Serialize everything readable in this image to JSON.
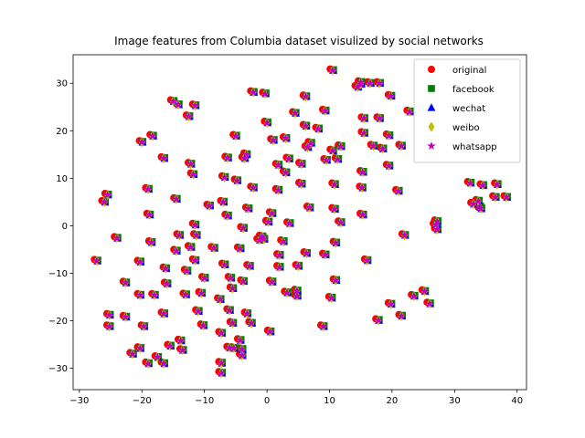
{
  "chart_data": {
    "type": "scatter",
    "title": "Image features from Columbia dataset visulized by social networks",
    "xlabel": "",
    "ylabel": "",
    "xlim": [
      -31,
      41.5
    ],
    "ylim": [
      -34.5,
      36
    ],
    "xticks": [
      -30,
      -20,
      -10,
      0,
      10,
      20,
      30,
      40
    ],
    "yticks": [
      -30,
      -20,
      -10,
      0,
      10,
      20,
      30
    ],
    "grid": false,
    "legend_position": "top-right",
    "series": [
      {
        "name": "original",
        "marker": "circle",
        "color": "#ff0000"
      },
      {
        "name": "facebook",
        "marker": "square",
        "color": "#008000"
      },
      {
        "name": "wechat",
        "marker": "triangle",
        "color": "#0000ff"
      },
      {
        "name": "weibo",
        "marker": "diamond",
        "color": "#bfbf00"
      },
      {
        "name": "whatsapp",
        "marker": "star",
        "color": "#bf00bf"
      }
    ],
    "points": [
      [
        -27.2,
        -7.4
      ],
      [
        -26,
        5
      ],
      [
        -25.5,
        6.5
      ],
      [
        -25.2,
        -18.8
      ],
      [
        -25.2,
        -21.2
      ],
      [
        -24,
        -2.6
      ],
      [
        -22.6,
        -12
      ],
      [
        -22.6,
        -19.2
      ],
      [
        -21.5,
        -27
      ],
      [
        -20.3,
        -25.8
      ],
      [
        -20.3,
        -14.6
      ],
      [
        -20.3,
        -7.6
      ],
      [
        -20,
        17.6
      ],
      [
        -19.7,
        -21.2
      ],
      [
        -19,
        7.7
      ],
      [
        -19,
        -29
      ],
      [
        -18.8,
        2.3
      ],
      [
        -18.5,
        -3.5
      ],
      [
        -18.3,
        18.9
      ],
      [
        -18,
        -14.6
      ],
      [
        -17.5,
        -27.7
      ],
      [
        -16.5,
        14.2
      ],
      [
        -16.5,
        -18.5
      ],
      [
        -16.5,
        -29
      ],
      [
        -16.2,
        -9
      ],
      [
        -16,
        -12.2
      ],
      [
        -15.5,
        -25.3
      ],
      [
        -15,
        26.2
      ],
      [
        -14.5,
        5.6
      ],
      [
        -14.5,
        -5.3
      ],
      [
        -14.2,
        25.5
      ],
      [
        -14,
        -2
      ],
      [
        -13.8,
        -24.2
      ],
      [
        -13.5,
        -26.2
      ],
      [
        -13,
        -14.5
      ],
      [
        -12.8,
        -9.5
      ],
      [
        -12.5,
        23
      ],
      [
        -12.2,
        13
      ],
      [
        -12.2,
        -4.5
      ],
      [
        -11.8,
        10.8
      ],
      [
        -11.5,
        0.2
      ],
      [
        -11.5,
        25.3
      ],
      [
        -11.5,
        -7.3
      ],
      [
        -11.3,
        -2
      ],
      [
        -11,
        -18
      ],
      [
        -10.5,
        -14.2
      ],
      [
        -10.2,
        -21
      ],
      [
        -10,
        -11
      ],
      [
        -9.2,
        4.2
      ],
      [
        -8.5,
        -4.7
      ],
      [
        -7.5,
        -15.5
      ],
      [
        -7.3,
        -22.6
      ],
      [
        -7.3,
        -28.9
      ],
      [
        -7.3,
        -31
      ],
      [
        -7,
        5
      ],
      [
        -6.8,
        10.2
      ],
      [
        -6.8,
        -8.2
      ],
      [
        -6.3,
        2.1
      ],
      [
        -6.3,
        14.3
      ],
      [
        -6,
        -25.7
      ],
      [
        -6,
        -17.8
      ],
      [
        -5.8,
        -11
      ],
      [
        -5.5,
        -13.2
      ],
      [
        -5.5,
        -20.5
      ],
      [
        -5.3,
        -25.8
      ],
      [
        -5,
        18.9
      ],
      [
        -4.8,
        9.5
      ],
      [
        -4.3,
        -4.8
      ],
      [
        -4.3,
        -24.1
      ],
      [
        -4,
        -27.3
      ],
      [
        -4,
        -26
      ],
      [
        -3.8,
        -11.7
      ],
      [
        -3.8,
        -0.5
      ],
      [
        -3.6,
        14.2
      ],
      [
        -3.3,
        15
      ],
      [
        -3.2,
        -18.5
      ],
      [
        -3,
        3.6
      ],
      [
        -2.8,
        -8.5
      ],
      [
        -2.5,
        -20.5
      ],
      [
        -2.2,
        8
      ],
      [
        -2.2,
        28.1
      ],
      [
        -1.2,
        -3
      ],
      [
        -0.8,
        -2.3
      ],
      [
        -0.5,
        -2.8
      ],
      [
        -0.3,
        27.8
      ],
      [
        0,
        21.7
      ],
      [
        0.2,
        0.8
      ],
      [
        0.5,
        -22.3
      ],
      [
        0.8,
        -11.8
      ],
      [
        0.8,
        2.6
      ],
      [
        1,
        18
      ],
      [
        1.8,
        12.8
      ],
      [
        1.8,
        7.5
      ],
      [
        2,
        -6.2
      ],
      [
        2,
        -8.7
      ],
      [
        2.6,
        -3.3
      ],
      [
        3,
        11.2
      ],
      [
        3,
        18.4
      ],
      [
        3.2,
        -14.1
      ],
      [
        3.5,
        14.1
      ],
      [
        3.6,
        0.5
      ],
      [
        4.5,
        23.7
      ],
      [
        4.8,
        -13.7
      ],
      [
        4.8,
        -14.8
      ],
      [
        5,
        -8.5
      ],
      [
        5.5,
        13
      ],
      [
        5.5,
        8.8
      ],
      [
        6.2,
        27.2
      ],
      [
        6.2,
        21
      ],
      [
        6.3,
        -5.8
      ],
      [
        6.5,
        16.5
      ],
      [
        6.8,
        3.8
      ],
      [
        7,
        17.4
      ],
      [
        8.2,
        20.4
      ],
      [
        9,
        -21.2
      ],
      [
        9.3,
        -6.1
      ],
      [
        9.3,
        24.2
      ],
      [
        9.5,
        13.8
      ],
      [
        10.3,
        -15.2
      ],
      [
        10.5,
        15.8
      ],
      [
        10.5,
        32.7
      ],
      [
        10.8,
        8.7
      ],
      [
        10.8,
        3.5
      ],
      [
        11,
        -11.5
      ],
      [
        11,
        -3.6
      ],
      [
        11.3,
        14
      ],
      [
        11.8,
        0.7
      ],
      [
        11.8,
        16.7
      ],
      [
        14.5,
        29.2
      ],
      [
        15,
        29.8
      ],
      [
        15,
        30.2
      ],
      [
        15.2,
        8
      ],
      [
        15.3,
        11.3
      ],
      [
        15.3,
        2.3
      ],
      [
        15.5,
        19.5
      ],
      [
        15.5,
        22.6
      ],
      [
        16,
        -7.3
      ],
      [
        16.5,
        30
      ],
      [
        17,
        16.8
      ],
      [
        17.8,
        -19.9
      ],
      [
        18,
        22.6
      ],
      [
        18,
        30
      ],
      [
        18.5,
        16.2
      ],
      [
        19.5,
        12.6
      ],
      [
        19.5,
        19
      ],
      [
        19.8,
        27.3
      ],
      [
        19.8,
        -16.5
      ],
      [
        21,
        7.3
      ],
      [
        21.5,
        -19
      ],
      [
        21.5,
        16.8
      ],
      [
        22,
        -2
      ],
      [
        22.8,
        24
      ],
      [
        23.5,
        -14.8
      ],
      [
        25.2,
        -13.8
      ],
      [
        26,
        -16.4
      ],
      [
        27,
        0.2
      ],
      [
        27.2,
        -0.8
      ],
      [
        27.2,
        0.9
      ],
      [
        32.5,
        9
      ],
      [
        33,
        4.6
      ],
      [
        33.8,
        5.2
      ],
      [
        34,
        4
      ],
      [
        34.2,
        3.6
      ],
      [
        34.5,
        8.5
      ],
      [
        36.5,
        6
      ],
      [
        36.8,
        8.7
      ],
      [
        38.3,
        6
      ]
    ]
  }
}
